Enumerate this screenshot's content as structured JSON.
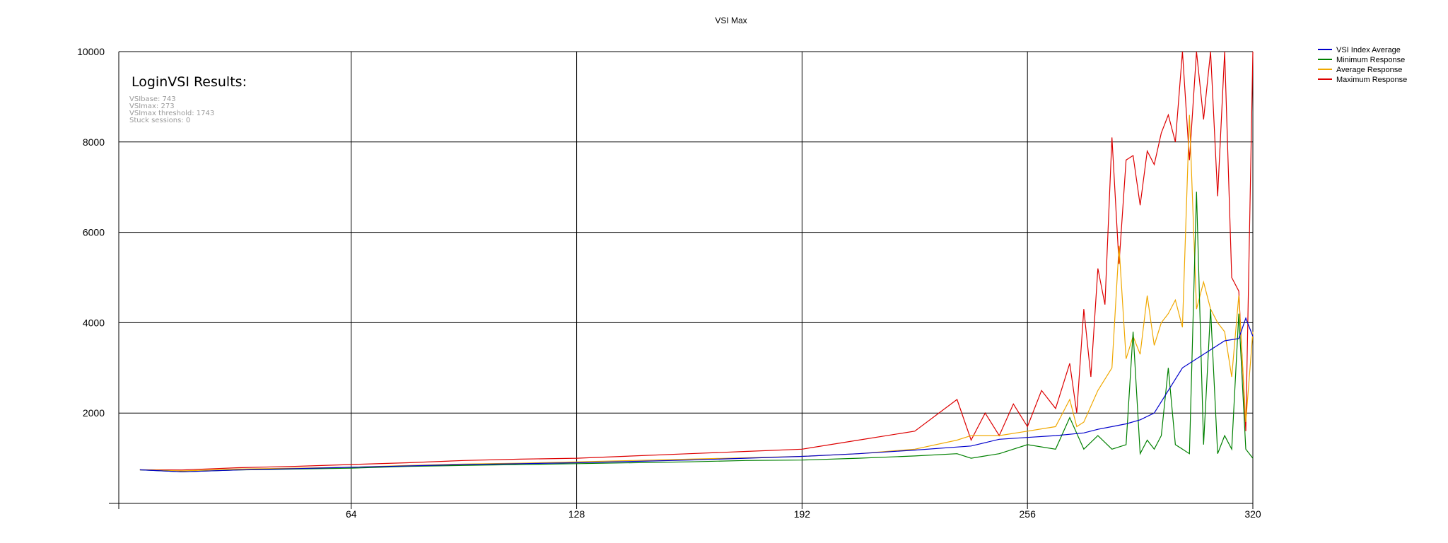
{
  "chart_data": {
    "type": "line",
    "title": "VSI Max",
    "xlabel": "",
    "ylabel": "",
    "xlim": [
      -2,
      320
    ],
    "ylim": [
      0,
      10000
    ],
    "xticks": [
      64,
      128,
      192,
      256,
      320
    ],
    "yticks": [
      2000,
      4000,
      6000,
      8000,
      10000
    ],
    "grid": true,
    "legend_position": "top-right",
    "annotation": {
      "heading": "LoginVSI Results:",
      "lines": [
        "VSIbase: 743",
        "VSImax: 273",
        "VSImax threshold: 1743",
        "Stuck sessions: 0"
      ]
    },
    "series_colors": {
      "vsi_index_average": "#0000cc",
      "minimum_response": "#008000",
      "average_response": "#f0a800",
      "maximum_response": "#dd0000"
    },
    "series": [
      {
        "name": "VSI Index Average",
        "key": "vsi_index_average",
        "x": [
          4,
          16,
          32,
          48,
          64,
          80,
          96,
          112,
          128,
          144,
          160,
          176,
          192,
          208,
          224,
          240,
          248,
          256,
          264,
          272,
          276,
          280,
          284,
          288,
          292,
          296,
          300,
          304,
          308,
          312,
          316,
          318,
          320
        ],
        "values": [
          743,
          700,
          740,
          770,
          800,
          830,
          860,
          880,
          900,
          930,
          960,
          1000,
          1040,
          1100,
          1180,
          1270,
          1420,
          1460,
          1500,
          1560,
          1640,
          1700,
          1760,
          1850,
          2000,
          2500,
          3000,
          3200,
          3400,
          3600,
          3650,
          4100,
          3700
        ]
      },
      {
        "name": "Minimum Response",
        "key": "minimum_response",
        "x": [
          4,
          16,
          32,
          48,
          64,
          80,
          96,
          112,
          128,
          144,
          160,
          176,
          192,
          208,
          224,
          236,
          240,
          248,
          256,
          264,
          268,
          272,
          276,
          280,
          284,
          286,
          288,
          290,
          292,
          294,
          296,
          298,
          300,
          302,
          304,
          306,
          308,
          310,
          312,
          314,
          316,
          318,
          320
        ],
        "values": [
          743,
          700,
          740,
          760,
          780,
          820,
          840,
          860,
          880,
          900,
          920,
          950,
          960,
          1000,
          1050,
          1100,
          1000,
          1100,
          1300,
          1200,
          1900,
          1200,
          1500,
          1200,
          1300,
          3800,
          1100,
          1400,
          1200,
          1500,
          3000,
          1300,
          1200,
          1100,
          6900,
          1300,
          4300,
          1100,
          1500,
          1200,
          4200,
          1200,
          1000
        ]
      },
      {
        "name": "Average Response",
        "key": "average_response",
        "x": [
          4,
          16,
          32,
          48,
          64,
          80,
          96,
          112,
          128,
          144,
          160,
          176,
          192,
          208,
          224,
          236,
          240,
          248,
          256,
          264,
          268,
          270,
          272,
          276,
          280,
          282,
          284,
          286,
          288,
          290,
          292,
          294,
          296,
          298,
          300,
          302,
          304,
          306,
          308,
          310,
          312,
          314,
          316,
          318,
          320
        ],
        "values": [
          743,
          720,
          760,
          780,
          800,
          840,
          870,
          890,
          920,
          950,
          980,
          1010,
          1040,
          1100,
          1200,
          1400,
          1500,
          1500,
          1600,
          1700,
          2300,
          1700,
          1800,
          2500,
          3000,
          5700,
          3200,
          3700,
          3300,
          4600,
          3500,
          4000,
          4200,
          4500,
          3900,
          8600,
          4300,
          4900,
          4300,
          4000,
          3800,
          2800,
          4600,
          1800,
          3800
        ]
      },
      {
        "name": "Maximum Response",
        "key": "maximum_response",
        "x": [
          4,
          16,
          32,
          48,
          64,
          80,
          96,
          112,
          128,
          144,
          160,
          176,
          192,
          208,
          224,
          236,
          240,
          244,
          248,
          252,
          256,
          260,
          264,
          268,
          270,
          272,
          274,
          276,
          278,
          280,
          282,
          284,
          286,
          288,
          290,
          292,
          294,
          296,
          298,
          300,
          302,
          304,
          306,
          308,
          310,
          312,
          314,
          316,
          318,
          320
        ],
        "values": [
          743,
          740,
          790,
          820,
          860,
          900,
          950,
          980,
          1000,
          1050,
          1100,
          1150,
          1200,
          1400,
          1600,
          2300,
          1400,
          2000,
          1500,
          2200,
          1700,
          2500,
          2100,
          3100,
          2000,
          4300,
          2800,
          5200,
          4400,
          8100,
          5300,
          7600,
          7700,
          6600,
          7800,
          7500,
          8200,
          8600,
          8000,
          10000,
          7600,
          10000,
          8500,
          10000,
          6800,
          10000,
          5000,
          4700,
          1600,
          10000
        ]
      }
    ]
  }
}
